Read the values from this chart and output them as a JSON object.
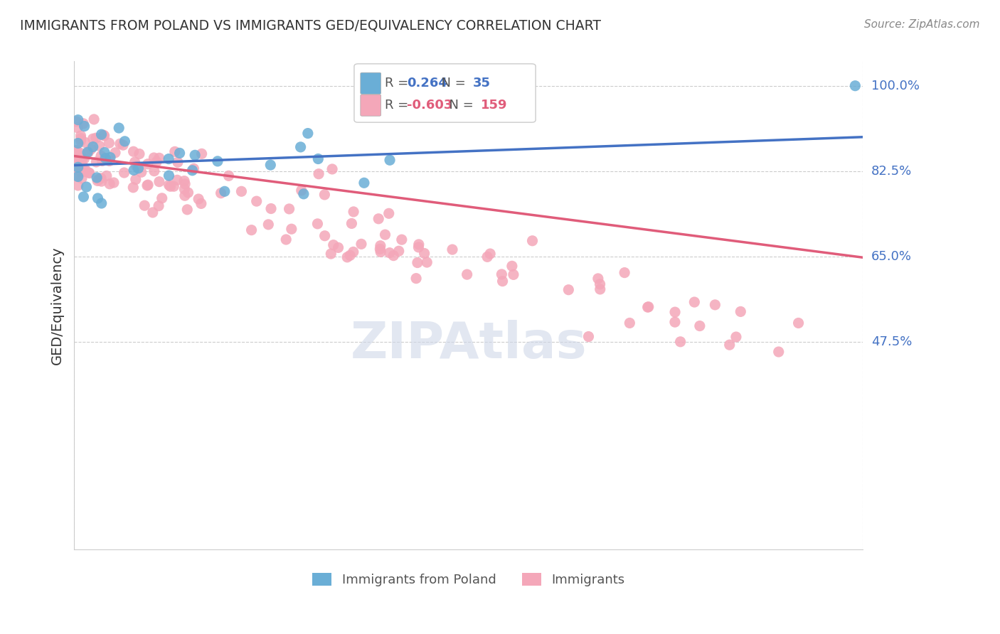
{
  "title": "IMMIGRANTS FROM POLAND VS IMMIGRANTS GED/EQUIVALENCY CORRELATION CHART",
  "source": "Source: ZipAtlas.com",
  "ylabel": "GED/Equivalency",
  "legend_label1": "Immigrants from Poland",
  "legend_label2": "Immigrants",
  "R1": 0.264,
  "N1": 35,
  "R2": -0.603,
  "N2": 159,
  "ytick_labels": [
    "100.0%",
    "82.5%",
    "65.0%",
    "47.5%"
  ],
  "ytick_values": [
    1.0,
    0.825,
    0.65,
    0.475
  ],
  "color_blue": "#6aaed6",
  "color_pink": "#f4a7b9",
  "line_blue": "#4472c4",
  "line_pink": "#e05c7a",
  "text_color": "#4472c4",
  "watermark_color": "#d0d8e8",
  "blue_line_y": [
    0.837,
    0.895
  ],
  "pink_line_y": [
    0.856,
    0.648
  ]
}
